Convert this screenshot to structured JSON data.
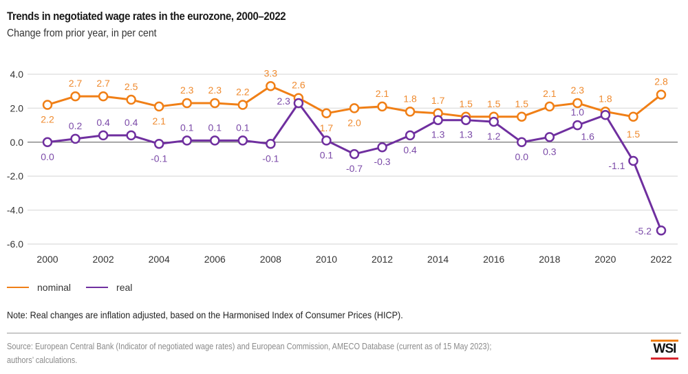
{
  "header": {
    "title": "Trends in negotiated wage rates in the eurozone, 2000–2022",
    "subtitle": "Change from prior year, in per cent"
  },
  "chart_data": {
    "type": "line",
    "title": "Trends in negotiated wage rates in the eurozone, 2000–2022",
    "subtitle": "Change from prior year, in per cent",
    "xlabel": "",
    "ylabel": "",
    "x": [
      2000,
      2001,
      2002,
      2003,
      2004,
      2005,
      2006,
      2007,
      2008,
      2009,
      2010,
      2011,
      2012,
      2013,
      2014,
      2015,
      2016,
      2017,
      2018,
      2019,
      2020,
      2021,
      2022
    ],
    "x_tick_labels": [
      "2000",
      "2002",
      "2004",
      "2006",
      "2008",
      "2010",
      "2012",
      "2014",
      "2016",
      "2018",
      "2020",
      "2022"
    ],
    "y_tick_labels": [
      "4.0",
      "2.0",
      "0.0",
      "-2.0",
      "-4.0",
      "-6.0"
    ],
    "ylim": [
      -6,
      4
    ],
    "grid": true,
    "legend_position": "bottom-left",
    "series": [
      {
        "name": "nominal",
        "color": "#f07f16",
        "values": [
          2.2,
          2.7,
          2.7,
          2.5,
          2.1,
          2.3,
          2.3,
          2.2,
          3.3,
          2.6,
          1.7,
          2.0,
          2.1,
          1.8,
          1.7,
          1.5,
          1.5,
          1.5,
          2.1,
          2.3,
          1.8,
          1.5,
          2.8
        ],
        "labels": [
          "2.2",
          "2.7",
          "2.7",
          "2.5",
          "2.1",
          "2.3",
          "2.3",
          "2.2",
          "3.3",
          "2.6",
          "1.7",
          "2.0",
          "2.1",
          "1.8",
          "1.7",
          "1.5",
          "1.5",
          "1.5",
          "2.1",
          "2.3",
          "1.8",
          "1.5",
          "2.8"
        ]
      },
      {
        "name": "real",
        "color": "#6f2f9f",
        "values": [
          0.0,
          0.2,
          0.4,
          0.4,
          -0.1,
          0.1,
          0.1,
          0.1,
          -0.1,
          2.3,
          0.1,
          -0.7,
          -0.3,
          0.4,
          1.3,
          1.3,
          1.2,
          0.0,
          0.3,
          1.0,
          1.6,
          -1.1,
          -5.2
        ],
        "labels": [
          "0.0",
          "0.2",
          "0.4",
          "0.4",
          "-0.1",
          "0.1",
          "0.1",
          "0.1",
          "-0.1",
          "2.3",
          "0.1",
          "-0.7",
          "-0.3",
          "0.4",
          "1.3",
          "1.3",
          "1.2",
          "0.0",
          "0.3",
          "1.0",
          "1.6",
          "-1.1",
          "-5.2"
        ]
      }
    ]
  },
  "legend": {
    "items": [
      {
        "label": "nominal",
        "color": "#f07f16"
      },
      {
        "label": "real",
        "color": "#6f2f9f"
      }
    ]
  },
  "note": "Note: Real changes are inflation adjusted, based on the Harmonised Index of Consumer Prices (HICP).",
  "source": {
    "line1": "Source: European Central Bank (Indicator of negotiated wage rates) and European Commission, AMECO Database (current as of 15 May 2023);",
    "line2": "authors’ calculations."
  },
  "logo": {
    "text": "WSI"
  }
}
